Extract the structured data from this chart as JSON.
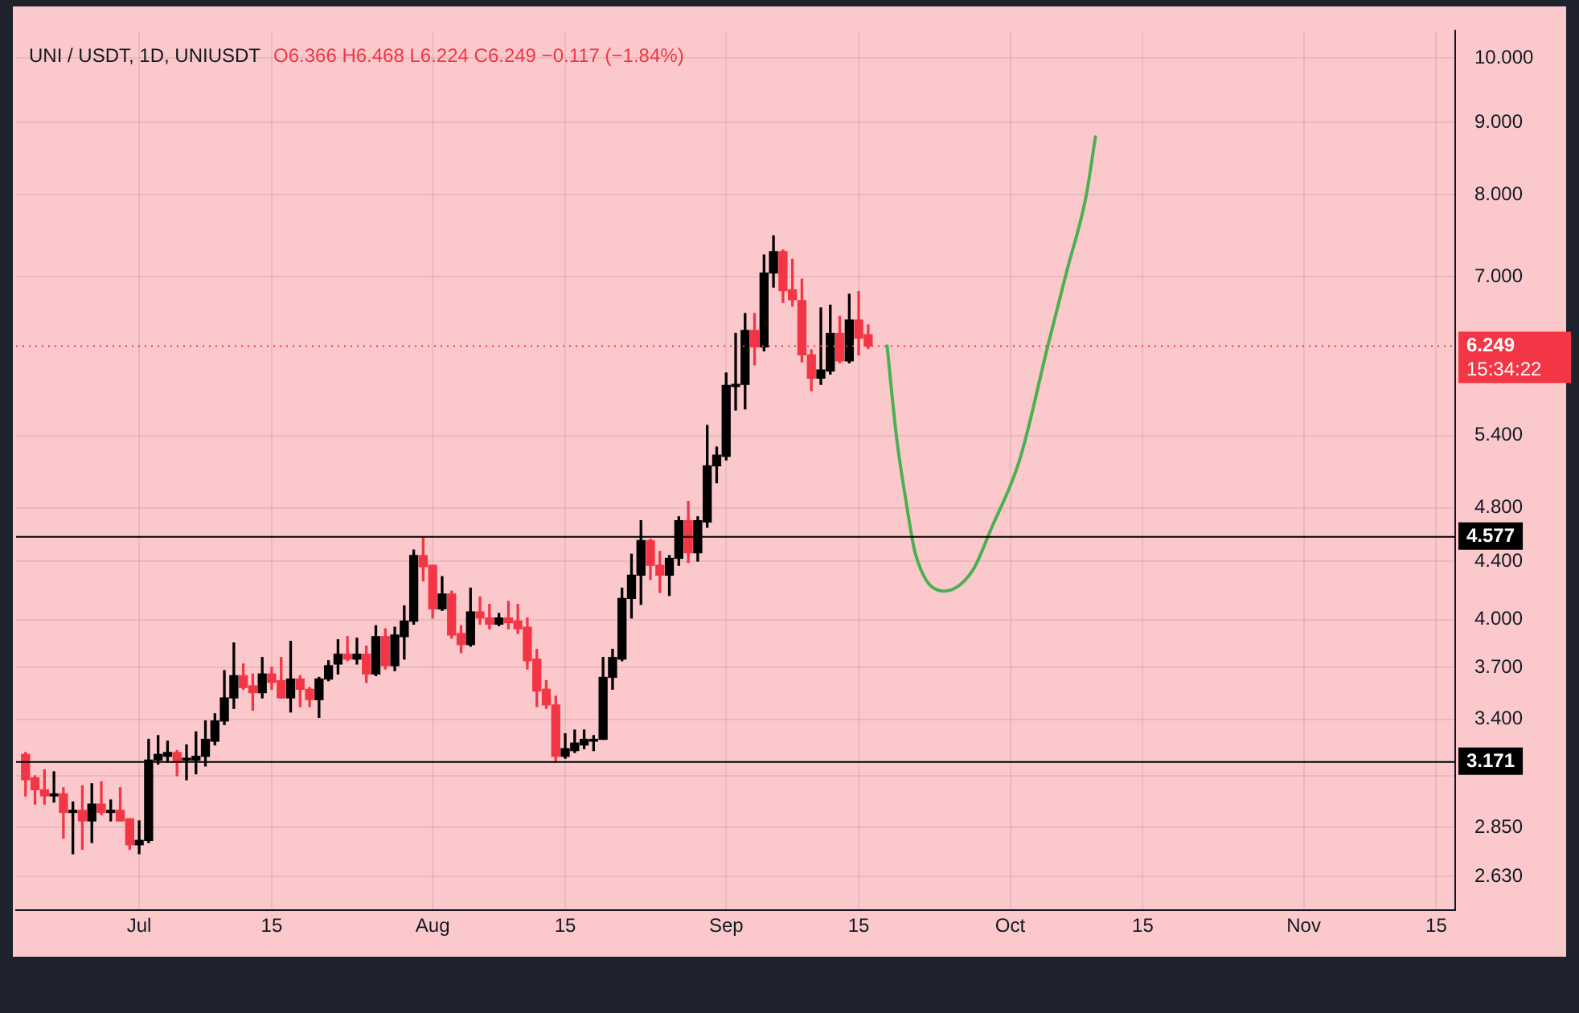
{
  "chart_data": {
    "type": "candlestick",
    "title": "UNI / USDT, 1D, UNIUSDT",
    "subtitle": "O6.366 H6.468 L6.224 C6.249 −0.117 (−1.84%)",
    "x": [
      "--06-19",
      "--06-20",
      "--06-21",
      "--06-22",
      "--06-23",
      "--06-24",
      "--06-25",
      "--06-26",
      "--06-27",
      "--06-28",
      "--06-29",
      "--06-30",
      "--07-01",
      "--07-02",
      "--07-03",
      "--07-04",
      "--07-05",
      "--07-06",
      "--07-07",
      "--07-08",
      "--07-09",
      "--07-10",
      "--07-11",
      "--07-12",
      "--07-13",
      "--07-14",
      "--07-15",
      "--07-16",
      "--07-17",
      "--07-18",
      "--07-19",
      "--07-20",
      "--07-21",
      "--07-22",
      "--07-23",
      "--07-24",
      "--07-25",
      "--07-26",
      "--07-27",
      "--07-28",
      "--07-29",
      "--07-30",
      "--07-31",
      "--08-01",
      "--08-02",
      "--08-03",
      "--08-04",
      "--08-05",
      "--08-06",
      "--08-07",
      "--08-08",
      "--08-09",
      "--08-10",
      "--08-11",
      "--08-12",
      "--08-13",
      "--08-14",
      "--08-15",
      "--08-16",
      "--08-17",
      "--08-18",
      "--08-19",
      "--08-20",
      "--08-21",
      "--08-22",
      "--08-23",
      "--08-24",
      "--08-25",
      "--08-26",
      "--08-27",
      "--08-28",
      "--08-29",
      "--08-30",
      "--08-31",
      "--09-01",
      "--09-02",
      "--09-03",
      "--09-04",
      "--09-05",
      "--09-06",
      "--09-07",
      "--09-08",
      "--09-09",
      "--09-10",
      "--09-11",
      "--09-12",
      "--09-13",
      "--09-14",
      "--09-15",
      "--09-16"
    ],
    "ohlc": [
      [
        3.21,
        3.22,
        3.0,
        3.08
      ],
      [
        3.09,
        3.1,
        2.96,
        3.03
      ],
      [
        3.03,
        3.13,
        2.96,
        3.0
      ],
      [
        3.0,
        3.12,
        2.97,
        3.01
      ],
      [
        3.01,
        3.04,
        2.8,
        2.92
      ],
      [
        2.92,
        2.97,
        2.73,
        2.93
      ],
      [
        2.93,
        3.05,
        2.75,
        2.88
      ],
      [
        2.88,
        3.06,
        2.78,
        2.96
      ],
      [
        2.96,
        3.07,
        2.91,
        2.92
      ],
      [
        2.92,
        2.98,
        2.88,
        2.93
      ],
      [
        2.93,
        3.04,
        2.88,
        2.88
      ],
      [
        2.89,
        2.89,
        2.75,
        2.77
      ],
      [
        2.77,
        2.88,
        2.73,
        2.79
      ],
      [
        2.79,
        3.29,
        2.78,
        3.18
      ],
      [
        3.18,
        3.31,
        3.16,
        3.21
      ],
      [
        3.2,
        3.28,
        3.17,
        3.22
      ],
      [
        3.22,
        3.23,
        3.1,
        3.17
      ],
      [
        3.18,
        3.26,
        3.08,
        3.19
      ],
      [
        3.18,
        3.33,
        3.11,
        3.2
      ],
      [
        3.2,
        3.39,
        3.15,
        3.29
      ],
      [
        3.28,
        3.43,
        3.26,
        3.39
      ],
      [
        3.39,
        3.68,
        3.37,
        3.52
      ],
      [
        3.52,
        3.85,
        3.46,
        3.65
      ],
      [
        3.65,
        3.72,
        3.57,
        3.58
      ],
      [
        3.59,
        3.66,
        3.45,
        3.55
      ],
      [
        3.55,
        3.76,
        3.52,
        3.66
      ],
      [
        3.66,
        3.7,
        3.57,
        3.61
      ],
      [
        3.62,
        3.76,
        3.52,
        3.52
      ],
      [
        3.52,
        3.86,
        3.44,
        3.63
      ],
      [
        3.63,
        3.65,
        3.47,
        3.57
      ],
      [
        3.57,
        3.58,
        3.47,
        3.51
      ],
      [
        3.51,
        3.64,
        3.41,
        3.63
      ],
      [
        3.63,
        3.74,
        3.62,
        3.71
      ],
      [
        3.72,
        3.87,
        3.66,
        3.78
      ],
      [
        3.78,
        3.89,
        3.74,
        3.75
      ],
      [
        3.75,
        3.88,
        3.72,
        3.78
      ],
      [
        3.78,
        3.83,
        3.61,
        3.66
      ],
      [
        3.66,
        3.96,
        3.65,
        3.89
      ],
      [
        3.89,
        3.94,
        3.69,
        3.71
      ],
      [
        3.71,
        3.95,
        3.68,
        3.9
      ],
      [
        3.89,
        4.09,
        3.75,
        3.99
      ],
      [
        3.99,
        4.48,
        3.97,
        4.44
      ],
      [
        4.44,
        4.577,
        4.26,
        4.36
      ],
      [
        4.37,
        4.37,
        4.01,
        4.07
      ],
      [
        4.07,
        4.29,
        4.06,
        4.17
      ],
      [
        4.17,
        4.19,
        3.88,
        3.9
      ],
      [
        3.91,
        3.96,
        3.79,
        3.84
      ],
      [
        3.84,
        4.21,
        3.83,
        4.05
      ],
      [
        4.05,
        4.15,
        3.97,
        4.01
      ],
      [
        4.01,
        4.1,
        3.94,
        3.97
      ],
      [
        3.97,
        4.04,
        3.96,
        4.01
      ],
      [
        4.01,
        4.12,
        3.94,
        3.98
      ],
      [
        3.99,
        4.1,
        3.91,
        3.94
      ],
      [
        3.95,
        4.01,
        3.69,
        3.74
      ],
      [
        3.75,
        3.81,
        3.47,
        3.56
      ],
      [
        3.57,
        3.62,
        3.46,
        3.48
      ],
      [
        3.48,
        3.53,
        3.171,
        3.2
      ],
      [
        3.2,
        3.32,
        3.19,
        3.24
      ],
      [
        3.23,
        3.34,
        3.22,
        3.27
      ],
      [
        3.26,
        3.34,
        3.24,
        3.29
      ],
      [
        3.28,
        3.31,
        3.23,
        3.29
      ],
      [
        3.29,
        3.76,
        3.29,
        3.64
      ],
      [
        3.64,
        3.81,
        3.57,
        3.76
      ],
      [
        3.75,
        4.21,
        3.74,
        4.14
      ],
      [
        4.14,
        4.45,
        4.01,
        4.3
      ],
      [
        4.3,
        4.7,
        4.1,
        4.55
      ],
      [
        4.55,
        4.56,
        4.27,
        4.37
      ],
      [
        4.37,
        4.47,
        4.18,
        4.3
      ],
      [
        4.3,
        4.44,
        4.16,
        4.42
      ],
      [
        4.42,
        4.73,
        4.37,
        4.7
      ],
      [
        4.7,
        4.85,
        4.39,
        4.46
      ],
      [
        4.46,
        4.73,
        4.4,
        4.7
      ],
      [
        4.69,
        5.49,
        4.65,
        5.14
      ],
      [
        5.14,
        5.3,
        5.0,
        5.23
      ],
      [
        5.22,
        5.98,
        5.19,
        5.86
      ],
      [
        5.85,
        6.38,
        5.63,
        5.87
      ],
      [
        5.87,
        6.59,
        5.64,
        6.41
      ],
      [
        6.41,
        6.59,
        6.06,
        6.24
      ],
      [
        6.24,
        7.25,
        6.2,
        7.04
      ],
      [
        7.04,
        7.48,
        6.88,
        7.29
      ],
      [
        7.29,
        7.31,
        6.71,
        6.84
      ],
      [
        6.85,
        7.2,
        6.67,
        6.74
      ],
      [
        6.73,
        6.97,
        6.09,
        6.16
      ],
      [
        6.16,
        6.21,
        5.81,
        5.93
      ],
      [
        5.93,
        6.65,
        5.87,
        6.01
      ],
      [
        6.0,
        6.68,
        5.97,
        6.38
      ],
      [
        6.38,
        6.56,
        6.08,
        6.1
      ],
      [
        6.1,
        6.8,
        6.08,
        6.52
      ],
      [
        6.52,
        6.83,
        6.16,
        6.33
      ],
      [
        6.366,
        6.468,
        6.224,
        6.249
      ]
    ],
    "series": [
      {
        "type": "line",
        "color": "#4caf50",
        "x": [
          "--09-18",
          "--09-19",
          "--09-20",
          "--09-21",
          "--09-24",
          "--09-27",
          "--09-29",
          "--10-02",
          "--10-05",
          "--10-07",
          "--10-09",
          "--10-10"
        ],
        "values": [
          6.25,
          5.38,
          4.85,
          4.45,
          4.19,
          4.33,
          4.64,
          5.19,
          6.26,
          7.07,
          7.97,
          8.79
        ]
      }
    ],
    "xlim": [
      "--06-18",
      "--11-17"
    ],
    "xticks": [
      {
        "value": "--07-01",
        "label": "Jul"
      },
      {
        "value": "--07-15",
        "label": "15"
      },
      {
        "value": "--08-01",
        "label": "Aug"
      },
      {
        "value": "--08-15",
        "label": "15"
      },
      {
        "value": "--09-01",
        "label": "Sep"
      },
      {
        "value": "--09-15",
        "label": "15"
      },
      {
        "value": "--10-01",
        "label": "Oct"
      },
      {
        "value": "--10-15",
        "label": "15"
      },
      {
        "value": "--11-01",
        "label": "Nov"
      },
      {
        "value": "--11-15",
        "label": "15"
      }
    ],
    "ylim": [
      2.49,
      10.45
    ],
    "yticks": [
      {
        "value": 2.63,
        "label": "2.630"
      },
      {
        "value": 2.85,
        "label": "2.850"
      },
      {
        "value": 3.1,
        "label": null
      },
      {
        "value": 3.4,
        "label": "3.400"
      },
      {
        "value": 3.7,
        "label": "3.700"
      },
      {
        "value": 4,
        "label": "4.000"
      },
      {
        "value": 4.4,
        "label": "4.400"
      },
      {
        "value": 4.8,
        "label": "4.800"
      },
      {
        "value": 5.4,
        "label": "5.400"
      },
      {
        "value": 7,
        "label": "7.000"
      },
      {
        "value": 8,
        "label": "8.000"
      },
      {
        "value": 9,
        "label": "9.000"
      },
      {
        "value": 10,
        "label": "10.000"
      }
    ],
    "log": "y",
    "grid": true,
    "ref_lines": [
      {
        "axis": "y",
        "value": 6.249,
        "label": "6.249",
        "color": "#f23645",
        "line_style": "dotted"
      },
      {
        "axis": "y",
        "value": 4.577,
        "label": "4.577",
        "color": "#000000",
        "line_style": "solid"
      },
      {
        "axis": "y",
        "value": 3.171,
        "label": "3.171",
        "color": "#000000",
        "line_style": "solid"
      }
    ],
    "annotations": [
      "15:34:22"
    ]
  }
}
